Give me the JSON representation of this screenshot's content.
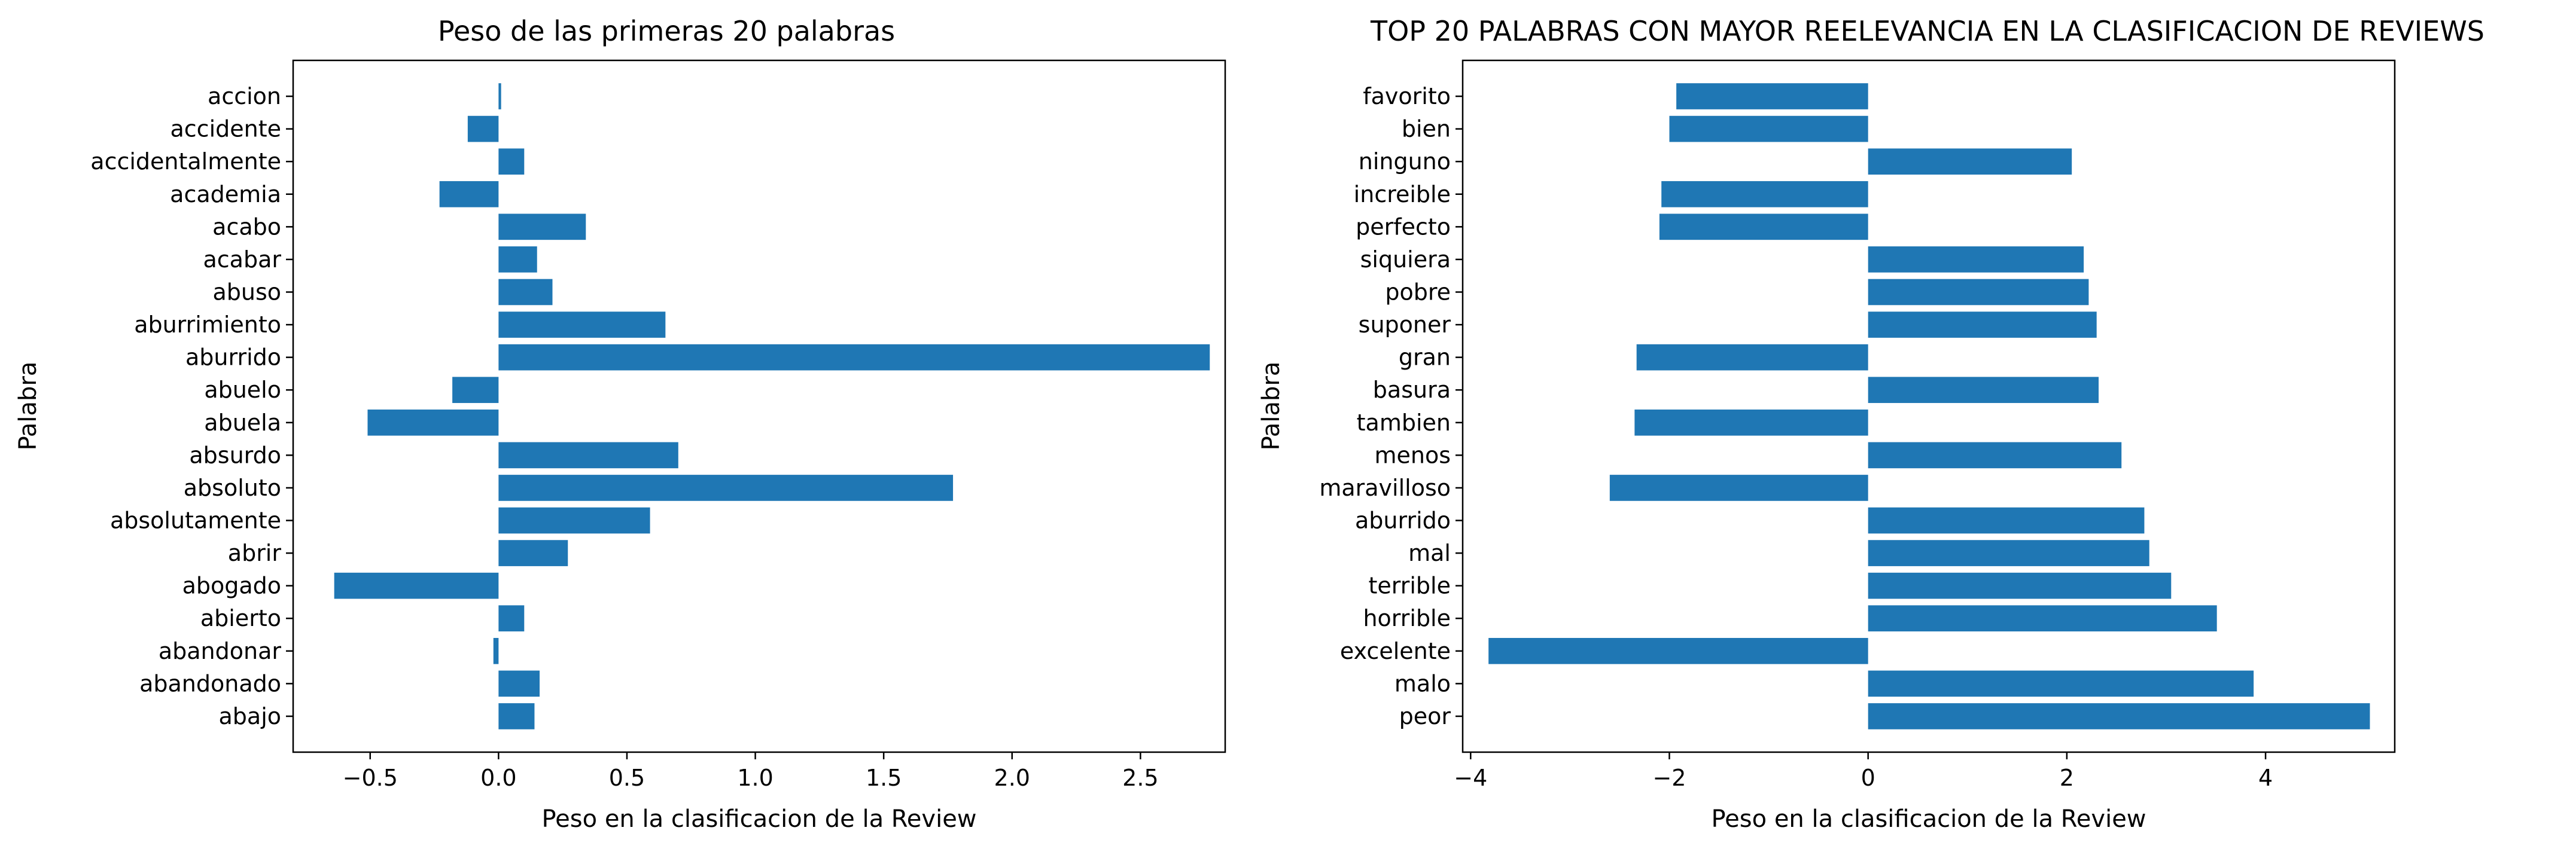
{
  "chart_data": [
    {
      "type": "bar",
      "orientation": "horizontal",
      "title": "Peso de las primeras 20 palabras",
      "xlabel": "Peso en la clasificacion de la Review",
      "ylabel": "Palabra",
      "xlim": [
        -0.8,
        2.83
      ],
      "xticks": [
        "−0.5",
        "0.0",
        "0.5",
        "1.0",
        "1.5",
        "2.0",
        "2.5"
      ],
      "xtick_values": [
        -0.5,
        0,
        0.5,
        1.0,
        1.5,
        2.0,
        2.5
      ],
      "grid": false,
      "color": "#1f77b4",
      "categories": [
        "abajo",
        "abandonado",
        "abandonar",
        "abierto",
        "abogado",
        "abrir",
        "absolutamente",
        "absoluto",
        "absurdo",
        "abuela",
        "abuelo",
        "aburrido",
        "aburrimiento",
        "abuso",
        "acabar",
        "acabo",
        "academia",
        "accidentalmente",
        "accidente",
        "accion"
      ],
      "values": [
        0.14,
        0.16,
        -0.02,
        0.1,
        -0.64,
        0.27,
        0.59,
        1.77,
        0.7,
        -0.51,
        -0.18,
        2.77,
        0.65,
        0.21,
        0.15,
        0.34,
        -0.23,
        0.1,
        -0.12,
        0.01
      ]
    },
    {
      "type": "bar",
      "orientation": "horizontal",
      "title": "TOP 20 PALABRAS CON MAYOR REELEVANCIA EN LA CLASIFICACION DE REVIEWS",
      "xlabel": "Peso en la clasificacion de la Review",
      "ylabel": "Palabra",
      "xlim": [
        -4.08,
        5.3
      ],
      "xticks": [
        "−4",
        "−2",
        "0",
        "2",
        "4"
      ],
      "xtick_values": [
        -4,
        -2,
        0,
        2,
        4
      ],
      "grid": false,
      "color": "#1f77b4",
      "categories": [
        "peor",
        "malo",
        "excelente",
        "horrible",
        "terrible",
        "mal",
        "aburrido",
        "maravilloso",
        "menos",
        "tambien",
        "basura",
        "gran",
        "suponer",
        "pobre",
        "siquiera",
        "perfecto",
        "increible",
        "ninguno",
        "bien",
        "favorito"
      ],
      "values": [
        5.05,
        3.88,
        -3.82,
        3.51,
        3.05,
        2.83,
        2.78,
        -2.6,
        2.55,
        -2.35,
        2.32,
        -2.33,
        2.3,
        2.22,
        2.17,
        -2.1,
        -2.08,
        2.05,
        -2.0,
        -1.93
      ]
    }
  ]
}
